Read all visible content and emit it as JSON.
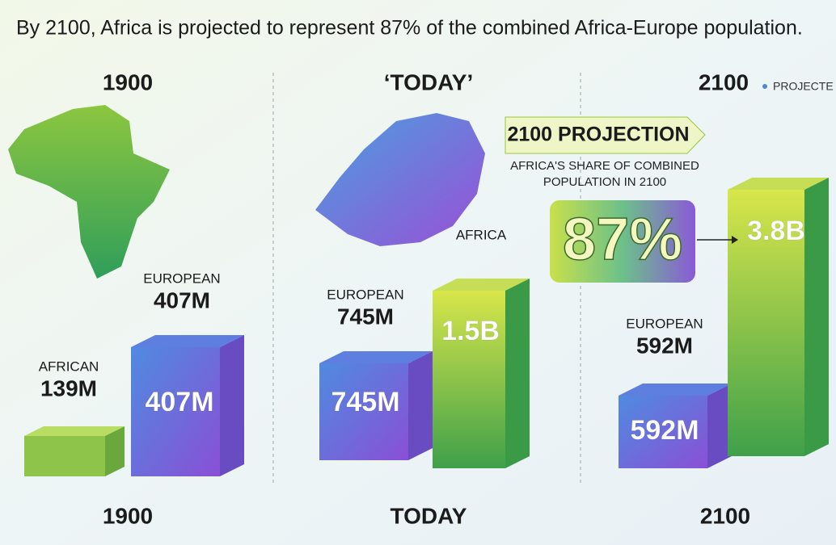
{
  "title": "By 2100, Africa is projected to represent 87% of the combined Africa-Europe population.",
  "panels": [
    {
      "heading": "1900",
      "footer": "1900",
      "blocks": [
        {
          "label": "AFRICAN",
          "value": "139M"
        },
        {
          "label": "EUROPEAN",
          "value": "407M",
          "block_label": "407M"
        }
      ]
    },
    {
      "heading": "‘TODAY’",
      "footer": "TODAY",
      "blocks": [
        {
          "label": "EUROPEAN",
          "value": "745M",
          "block_label": "745M"
        },
        {
          "label": "AFRICA",
          "block_label": "1.5B"
        }
      ]
    },
    {
      "heading": "2100",
      "tag": "PROJECTE",
      "footer": "2100",
      "projection": {
        "banner": "2100 PROJECTION",
        "caption": [
          "AFRICA'S SHARE OF COMBINED",
          "POPULATION IN 2100"
        ],
        "share": "87%"
      },
      "blocks": [
        {
          "label": "EUROPEAN",
          "value": "592M",
          "block_label": "592M"
        },
        {
          "block_label": "3.8B"
        }
      ]
    }
  ]
}
